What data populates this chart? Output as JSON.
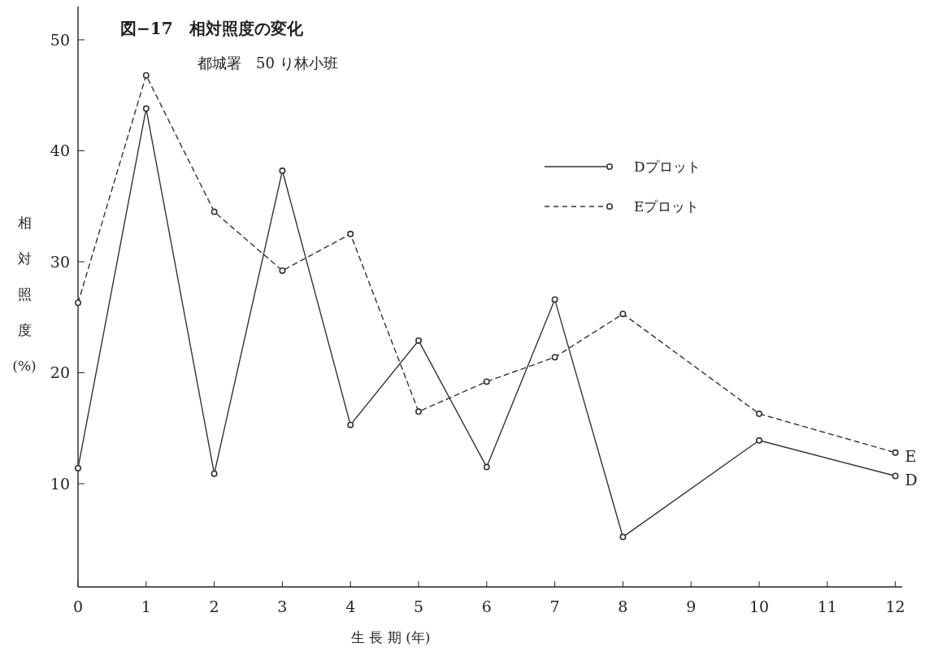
{
  "chart_data": {
    "type": "line",
    "title": "図−17　相対照度の変化",
    "subtitle": "都城署　50 り林小班",
    "xlabel": "生 長 期 (年)",
    "ylabel": "相対照度(%)",
    "x": [
      0,
      1,
      2,
      3,
      4,
      5,
      6,
      7,
      8,
      10,
      12
    ],
    "xlim": [
      0,
      12.1
    ],
    "xticks": [
      0,
      1,
      2,
      3,
      4,
      5,
      6,
      7,
      8,
      9,
      10,
      11,
      12
    ],
    "ylim": [
      0.7,
      53
    ],
    "yticks": [
      10,
      20,
      30,
      40,
      50
    ],
    "series": [
      {
        "name": "Dプロット",
        "color": "#333333",
        "line_style": "solid",
        "values": [
          11.4,
          43.8,
          10.9,
          38.2,
          15.3,
          22.9,
          11.5,
          26.6,
          5.2,
          13.9,
          10.7
        ]
      },
      {
        "name": "Eプロット",
        "color": "#333333",
        "line_style": "dashed",
        "values": [
          26.3,
          46.8,
          34.5,
          29.2,
          32.5,
          16.5,
          19.2,
          21.4,
          25.3,
          16.3,
          12.8
        ]
      }
    ],
    "annotations": [
      {
        "text": "E",
        "x": 12,
        "y": 12.8
      },
      {
        "text": "D",
        "x": 12,
        "y": 10.7
      }
    ],
    "marker": "circle",
    "legend": "top right",
    "grid": false
  }
}
